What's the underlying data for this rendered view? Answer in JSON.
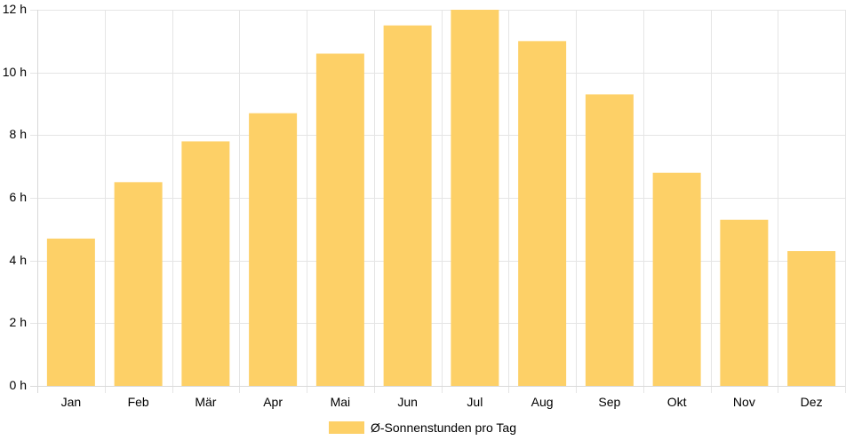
{
  "chart_data": {
    "type": "bar",
    "categories": [
      "Jan",
      "Feb",
      "Mär",
      "Apr",
      "Mai",
      "Jun",
      "Jul",
      "Aug",
      "Sep",
      "Okt",
      "Nov",
      "Dez"
    ],
    "series": [
      {
        "name": "Ø-Sonnenstunden pro Tag",
        "values": [
          4.7,
          6.5,
          7.8,
          8.7,
          10.6,
          11.5,
          12.0,
          11.0,
          9.3,
          6.8,
          5.3,
          4.3
        ],
        "color": "#fdd067"
      }
    ],
    "ylim": [
      0,
      12
    ],
    "yticks": [
      0,
      2,
      4,
      6,
      8,
      10,
      12
    ],
    "ytick_labels": [
      "0 h",
      "2 h",
      "4 h",
      "6 h",
      "8 h",
      "10 h",
      "12 h"
    ],
    "grid": true,
    "legend_position": "bottom"
  }
}
